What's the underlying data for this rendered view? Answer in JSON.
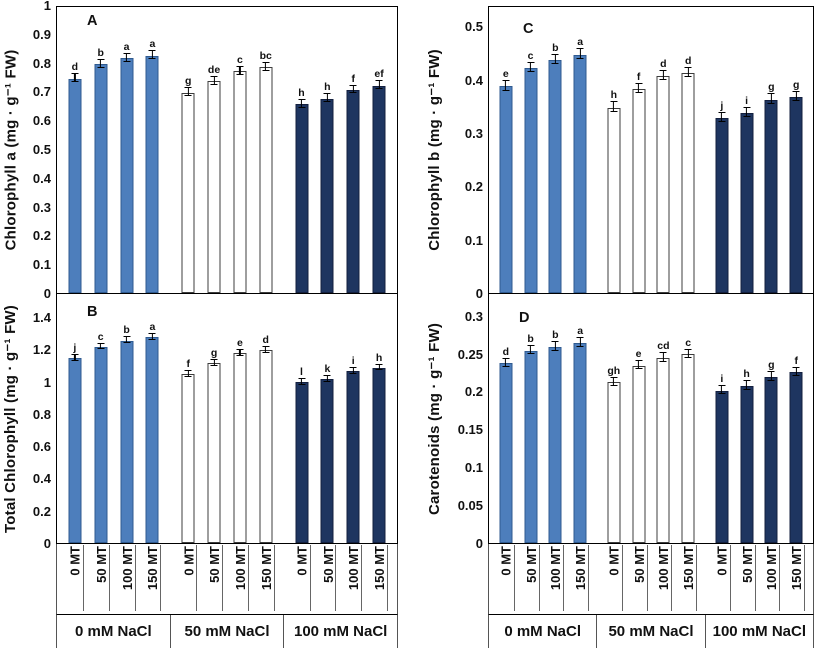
{
  "figure": {
    "treatments": [
      "0 MT",
      "50 MT",
      "100 MT",
      "150 MT"
    ],
    "salt_groups": [
      "0 mM NaCl",
      "50 mM NaCl",
      "100 mM NaCl"
    ],
    "colors": {
      "group_fills": [
        "#4d7ebc",
        "#ffffff",
        "#1e3560"
      ],
      "group_borders": [
        "#2f5a8f",
        "#3c3c3c",
        "#131f3e"
      ],
      "error_bar": "#000000",
      "axis": "#000000",
      "text": "#111111"
    }
  },
  "chart_data": [
    {
      "type": "bar",
      "panel_label": "A",
      "ylabel": "Chlorophyll a (mg · g⁻¹ FW)",
      "ylim": [
        0,
        1
      ],
      "axis_top": 1.0,
      "yticks": [
        "0",
        "0.1",
        "0.2",
        "0.3",
        "0.4",
        "0.5",
        "0.6",
        "0.7",
        "0.8",
        "0.9",
        "1"
      ],
      "group_labels": [
        "0 mM NaCl",
        "50 mM NaCl",
        "100 mM NaCl"
      ],
      "categories": [
        "0 MT",
        "50 MT",
        "100 MT",
        "150 MT",
        "0 MT",
        "50 MT",
        "100 MT",
        "150 MT",
        "0 MT",
        "50 MT",
        "100 MT",
        "150 MT"
      ],
      "values": [
        0.75,
        0.8,
        0.82,
        0.83,
        0.7,
        0.74,
        0.775,
        0.79,
        0.66,
        0.68,
        0.71,
        0.725
      ],
      "error": 0.012,
      "letters": [
        "d",
        "b",
        "a",
        "a",
        "g",
        "de",
        "c",
        "bc",
        "h",
        "h",
        "f",
        "ef"
      ],
      "legend_position": "none",
      "grid": false
    },
    {
      "type": "bar",
      "panel_label": "B",
      "ylabel": "Total Chlorophyll (mg · g⁻¹ FW)",
      "ylim": [
        0,
        1.4
      ],
      "axis_top": 1.55,
      "yticks": [
        "0",
        "0.2",
        "0.4",
        "0.6",
        "0.8",
        "1",
        "1.2",
        "1.4"
      ],
      "group_labels": [
        "0 mM NaCl",
        "50 mM NaCl",
        "100 mM NaCl"
      ],
      "categories": [
        "0 MT",
        "50 MT",
        "100 MT",
        "150 MT",
        "0 MT",
        "50 MT",
        "100 MT",
        "150 MT",
        "0 MT",
        "50 MT",
        "100 MT",
        "150 MT"
      ],
      "values": [
        1.15,
        1.22,
        1.26,
        1.28,
        1.05,
        1.12,
        1.18,
        1.2,
        1.0,
        1.02,
        1.07,
        1.09
      ],
      "error": 0.015,
      "letters": [
        "j",
        "c",
        "b",
        "a",
        "f",
        "g",
        "e",
        "d",
        "l",
        "k",
        "i",
        "h"
      ],
      "legend_position": "none",
      "grid": false
    },
    {
      "type": "bar",
      "panel_label": "C",
      "ylabel": "Chlorophyll b (mg · g⁻¹ FW)",
      "ylim": [
        0,
        0.5
      ],
      "axis_top": 0.54,
      "yticks": [
        "0",
        "0.1",
        "0.2",
        "0.3",
        "0.4",
        "0.5"
      ],
      "group_labels": [
        "0 mM NaCl",
        "50 mM NaCl",
        "100 mM NaCl"
      ],
      "categories": [
        "0 MT",
        "50 MT",
        "100 MT",
        "150 MT",
        "0 MT",
        "50 MT",
        "100 MT",
        "150 MT",
        "0 MT",
        "50 MT",
        "100 MT",
        "150 MT"
      ],
      "values": [
        0.39,
        0.425,
        0.44,
        0.45,
        0.35,
        0.385,
        0.41,
        0.415,
        0.33,
        0.34,
        0.365,
        0.37
      ],
      "error": 0.008,
      "letters": [
        "e",
        "c",
        "b",
        "a",
        "h",
        "f",
        "d",
        "d",
        "j",
        "i",
        "g",
        "g"
      ],
      "legend_position": "none",
      "grid": false
    },
    {
      "type": "bar",
      "panel_label": "D",
      "ylabel": "Carotenoids (mg · g⁻¹ FW)",
      "ylim": [
        0,
        0.3
      ],
      "axis_top": 0.33,
      "yticks": [
        "0",
        "0.05",
        "0.1",
        "0.15",
        "0.2",
        "0.25",
        "0.3"
      ],
      "group_labels": [
        "0 mM NaCl",
        "50 mM NaCl",
        "100 mM NaCl"
      ],
      "categories": [
        "0 MT",
        "50 MT",
        "100 MT",
        "150 MT",
        "0 MT",
        "50 MT",
        "100 MT",
        "150 MT",
        "0 MT",
        "50 MT",
        "100 MT",
        "150 MT"
      ],
      "values": [
        0.238,
        0.255,
        0.26,
        0.265,
        0.213,
        0.235,
        0.245,
        0.25,
        0.202,
        0.208,
        0.22,
        0.226
      ],
      "error": 0.005,
      "letters": [
        "d",
        "b",
        "b",
        "a",
        "gh",
        "e",
        "cd",
        "c",
        "i",
        "h",
        "g",
        "f"
      ],
      "legend_position": "none",
      "grid": false
    }
  ]
}
